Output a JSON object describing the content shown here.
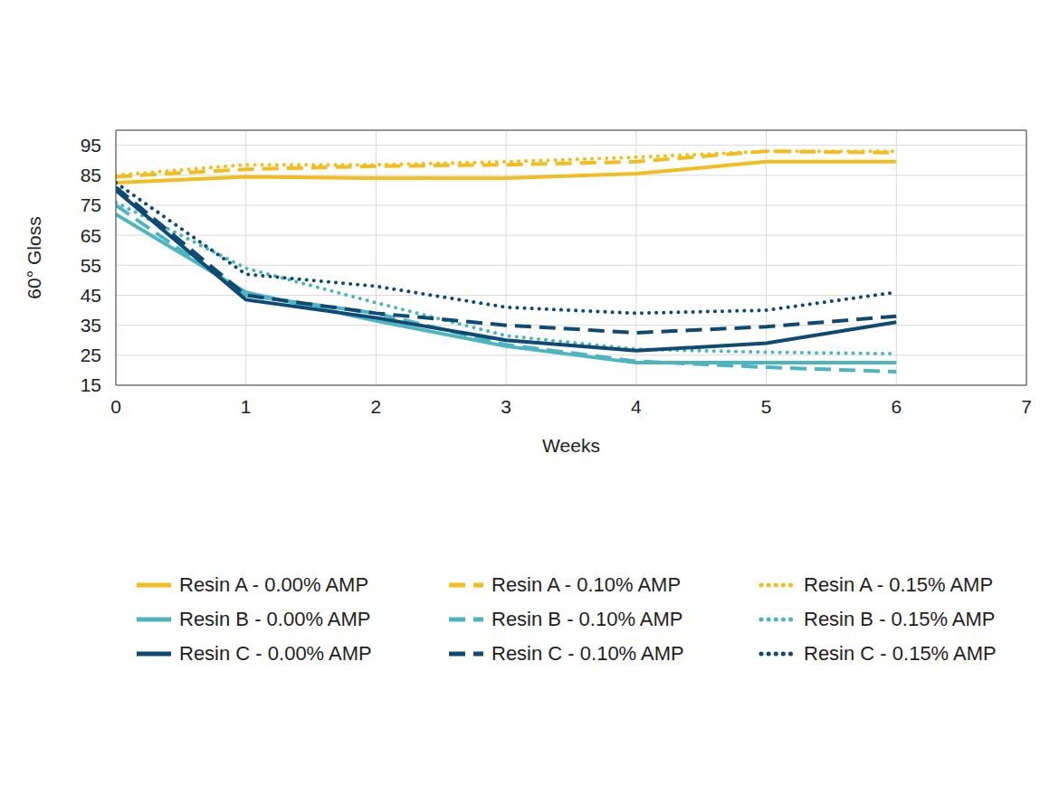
{
  "chart_data": {
    "type": "line",
    "x_label": "Weeks",
    "y_label": "60° Gloss",
    "x": [
      0,
      1,
      2,
      3,
      4,
      5,
      6
    ],
    "xlim": [
      0,
      7
    ],
    "xticks": [
      0,
      1,
      2,
      3,
      4,
      5,
      6,
      7
    ],
    "ylim": [
      15,
      100
    ],
    "yticks": [
      15,
      25,
      35,
      45,
      55,
      65,
      75,
      85,
      95
    ],
    "grid": true,
    "legend": "bottom",
    "series": [
      {
        "name": "Resin A - 0.00% AMP",
        "color": "#f2bd1d",
        "line_style": "solid",
        "values": [
          82.5,
          84.5,
          84,
          84,
          85.5,
          89.5,
          89.5
        ]
      },
      {
        "name": "Resin A - 0.10% AMP",
        "color": "#f2bd1d",
        "line_style": "dashed",
        "values": [
          84.5,
          87,
          88,
          88.5,
          89.5,
          93,
          92.5
        ]
      },
      {
        "name": "Resin A - 0.15% AMP",
        "color": "#f2bd1d",
        "line_style": "dotted",
        "values": [
          85,
          88.5,
          88.5,
          89.5,
          91,
          93,
          93
        ]
      },
      {
        "name": "Resin B - 0.00% AMP",
        "color": "#4db5be",
        "line_style": "solid",
        "values": [
          72,
          46,
          36.5,
          28,
          22.5,
          22.5,
          22.5
        ]
      },
      {
        "name": "Resin B - 0.10% AMP",
        "color": "#4db5be",
        "line_style": "dashed",
        "values": [
          75,
          45,
          39,
          28.5,
          23,
          21,
          19.5
        ]
      },
      {
        "name": "Resin B - 0.15% AMP",
        "color": "#4db5be",
        "line_style": "dotted",
        "values": [
          76,
          54,
          42.5,
          31.5,
          27,
          26,
          25.5
        ]
      },
      {
        "name": "Resin C - 0.00% AMP",
        "color": "#0e4a73",
        "line_style": "solid",
        "values": [
          80,
          43.5,
          37.5,
          30,
          26.5,
          29,
          36
        ]
      },
      {
        "name": "Resin C - 0.10% AMP",
        "color": "#0e4a73",
        "line_style": "dashed",
        "values": [
          81,
          45,
          39,
          35,
          32.5,
          34.5,
          38
        ]
      },
      {
        "name": "Resin C - 0.15% AMP",
        "color": "#0e4a73",
        "line_style": "dotted",
        "values": [
          82.5,
          52,
          48,
          41,
          39,
          40,
          46
        ]
      }
    ]
  }
}
